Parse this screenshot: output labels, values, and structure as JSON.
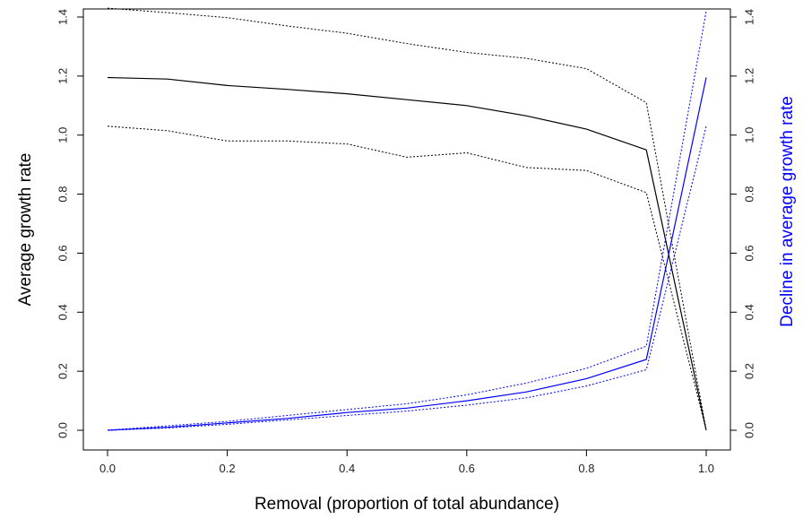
{
  "chart_data": {
    "type": "line",
    "xlabel": "Removal (proportion of total abundance)",
    "ylabel": "Average growth rate",
    "ylabel_right": "Decline in average growth rate",
    "xlim": [
      0.0,
      1.0
    ],
    "ylim": [
      0.0,
      1.4
    ],
    "ylim_right": [
      0.0,
      1.4
    ],
    "x_ticks": [
      "0.0",
      "0.2",
      "0.4",
      "0.6",
      "0.8",
      "1.0"
    ],
    "y_ticks": [
      "0.0",
      "0.2",
      "0.4",
      "0.6",
      "0.8",
      "1.0",
      "1.2",
      "1.4"
    ],
    "y_ticks_right": [
      "0.0",
      "0.2",
      "0.4",
      "0.6",
      "0.8",
      "1.0",
      "1.2",
      "1.4"
    ],
    "grid": false,
    "legend": "none",
    "x": [
      0.0,
      0.1,
      0.2,
      0.3,
      0.4,
      0.5,
      0.6,
      0.7,
      0.8,
      0.9,
      1.0
    ],
    "series": [
      {
        "axis": "left",
        "style": "solid",
        "color": "#000000",
        "values": [
          1.195,
          1.19,
          1.168,
          1.155,
          1.14,
          1.12,
          1.1,
          1.065,
          1.02,
          0.95,
          0.0
        ]
      },
      {
        "axis": "left",
        "style": "dotted",
        "color": "#000000",
        "values": [
          1.43,
          1.415,
          1.398,
          1.37,
          1.345,
          1.31,
          1.28,
          1.26,
          1.225,
          1.11,
          0.0
        ]
      },
      {
        "axis": "left",
        "style": "dotted",
        "color": "#000000",
        "values": [
          1.03,
          1.015,
          0.98,
          0.98,
          0.97,
          0.925,
          0.94,
          0.89,
          0.88,
          0.805,
          0.0
        ]
      },
      {
        "axis": "right",
        "style": "solid",
        "color": "#0000ff",
        "values": [
          0.0,
          0.01,
          0.025,
          0.04,
          0.06,
          0.075,
          0.1,
          0.13,
          0.175,
          0.24,
          1.195
        ]
      },
      {
        "axis": "right",
        "style": "dotted",
        "color": "#0000ff",
        "values": [
          0.0,
          0.015,
          0.03,
          0.05,
          0.07,
          0.09,
          0.12,
          0.16,
          0.21,
          0.285,
          1.42
        ]
      },
      {
        "axis": "right",
        "style": "dotted",
        "color": "#0000ff",
        "values": [
          0.0,
          0.008,
          0.02,
          0.035,
          0.05,
          0.065,
          0.085,
          0.11,
          0.15,
          0.205,
          1.03
        ]
      }
    ]
  }
}
